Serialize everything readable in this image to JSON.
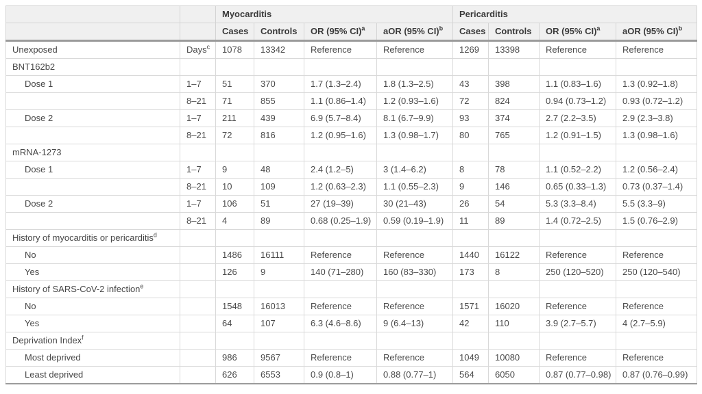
{
  "table": {
    "groups": [
      {
        "label": "Myocarditis"
      },
      {
        "label": "Pericarditis"
      }
    ],
    "columns": [
      {
        "label": "Cases",
        "sup": ""
      },
      {
        "label": "Controls",
        "sup": ""
      },
      {
        "label": "OR (95% CI)",
        "sup": "a"
      },
      {
        "label": "aOR (95% CI)",
        "sup": "b"
      },
      {
        "label": "Cases",
        "sup": ""
      },
      {
        "label": "Controls",
        "sup": ""
      },
      {
        "label": "OR (95% CI)",
        "sup": "a"
      },
      {
        "label": "aOR (95% CI)",
        "sup": "b"
      }
    ],
    "rows": [
      {
        "label": "Unexposed",
        "sup": "",
        "indent": false,
        "section": false,
        "days": "Days",
        "days_sup": "c",
        "values": [
          "1078",
          "13342",
          "Reference",
          "Reference",
          "1269",
          "13398",
          "Reference",
          "Reference"
        ]
      },
      {
        "label": "BNT162b2",
        "sup": "",
        "indent": false,
        "section": true,
        "days": "",
        "days_sup": "",
        "values": [
          "",
          "",
          "",
          "",
          "",
          "",
          "",
          ""
        ]
      },
      {
        "label": "Dose 1",
        "sup": "",
        "indent": true,
        "section": false,
        "days": "1–7",
        "days_sup": "",
        "values": [
          "51",
          "370",
          "1.7 (1.3–2.4)",
          "1.8 (1.3–2.5)",
          "43",
          "398",
          "1.1 (0.83–1.6)",
          "1.3 (0.92–1.8)"
        ]
      },
      {
        "label": "",
        "sup": "",
        "indent": true,
        "section": false,
        "days": "8–21",
        "days_sup": "",
        "values": [
          "71",
          "855",
          "1.1 (0.86–1.4)",
          "1.2 (0.93–1.6)",
          "72",
          "824",
          "0.94 (0.73–1.2)",
          "0.93 (0.72–1.2)"
        ]
      },
      {
        "label": "Dose 2",
        "sup": "",
        "indent": true,
        "section": false,
        "days": "1–7",
        "days_sup": "",
        "values": [
          "211",
          "439",
          "6.9 (5.7–8.4)",
          "8.1 (6.7–9.9)",
          "93",
          "374",
          "2.7 (2.2–3.5)",
          "2.9 (2.3–3.8)"
        ]
      },
      {
        "label": "",
        "sup": "",
        "indent": true,
        "section": false,
        "days": "8–21",
        "days_sup": "",
        "values": [
          "72",
          "816",
          "1.2 (0.95–1.6)",
          "1.3 (0.98–1.7)",
          "80",
          "765",
          "1.2 (0.91–1.5)",
          "1.3 (0.98–1.6)"
        ]
      },
      {
        "label": "mRNA-1273",
        "sup": "",
        "indent": false,
        "section": true,
        "days": "",
        "days_sup": "",
        "values": [
          "",
          "",
          "",
          "",
          "",
          "",
          "",
          ""
        ]
      },
      {
        "label": "Dose 1",
        "sup": "",
        "indent": true,
        "section": false,
        "days": "1–7",
        "days_sup": "",
        "values": [
          "9",
          "48",
          "2.4 (1.2–5)",
          "3 (1.4–6.2)",
          "8",
          "78",
          "1.1 (0.52–2.2)",
          "1.2 (0.56–2.4)"
        ]
      },
      {
        "label": "",
        "sup": "",
        "indent": true,
        "section": false,
        "days": "8–21",
        "days_sup": "",
        "values": [
          "10",
          "109",
          "1.2 (0.63–2.3)",
          "1.1 (0.55–2.3)",
          "9",
          "146",
          "0.65 (0.33–1.3)",
          "0.73 (0.37–1.4)"
        ]
      },
      {
        "label": "Dose 2",
        "sup": "",
        "indent": true,
        "section": false,
        "days": "1–7",
        "days_sup": "",
        "values": [
          "106",
          "51",
          "27 (19–39)",
          "30 (21–43)",
          "26",
          "54",
          "5.3 (3.3–8.4)",
          "5.5 (3.3–9)"
        ]
      },
      {
        "label": "",
        "sup": "",
        "indent": true,
        "section": false,
        "days": "8–21",
        "days_sup": "",
        "values": [
          "4",
          "89",
          "0.68 (0.25–1.9)",
          "0.59 (0.19–1.9)",
          "11",
          "89",
          "1.4 (0.72–2.5)",
          "1.5 (0.76–2.9)"
        ]
      },
      {
        "label": "History of myocarditis or pericarditis",
        "sup": "d",
        "indent": false,
        "section": true,
        "days": "",
        "days_sup": "",
        "values": [
          "",
          "",
          "",
          "",
          "",
          "",
          "",
          ""
        ]
      },
      {
        "label": "No",
        "sup": "",
        "indent": true,
        "section": false,
        "days": "",
        "days_sup": "",
        "values": [
          "1486",
          "16111",
          "Reference",
          "Reference",
          "1440",
          "16122",
          "Reference",
          "Reference"
        ]
      },
      {
        "label": "Yes",
        "sup": "",
        "indent": true,
        "section": false,
        "days": "",
        "days_sup": "",
        "values": [
          "126",
          "9",
          "140 (71–280)",
          "160 (83–330)",
          "173",
          "8",
          "250 (120–520)",
          "250 (120–540)"
        ]
      },
      {
        "label": "History of SARS-CoV-2 infection",
        "sup": "e",
        "indent": false,
        "section": true,
        "days": "",
        "days_sup": "",
        "values": [
          "",
          "",
          "",
          "",
          "",
          "",
          "",
          ""
        ]
      },
      {
        "label": "No",
        "sup": "",
        "indent": true,
        "section": false,
        "days": "",
        "days_sup": "",
        "values": [
          "1548",
          "16013",
          "Reference",
          "Reference",
          "1571",
          "16020",
          "Reference",
          "Reference"
        ]
      },
      {
        "label": "Yes",
        "sup": "",
        "indent": true,
        "section": false,
        "days": "",
        "days_sup": "",
        "values": [
          "64",
          "107",
          "6.3 (4.6–8.6)",
          "9 (6.4–13)",
          "42",
          "110",
          "3.9 (2.7–5.7)",
          "4 (2.7–5.9)"
        ]
      },
      {
        "label": "Deprivation Index",
        "sup": "f",
        "indent": false,
        "section": true,
        "days": "",
        "days_sup": "",
        "values": [
          "",
          "",
          "",
          "",
          "",
          "",
          "",
          ""
        ]
      },
      {
        "label": "Most deprived",
        "sup": "",
        "indent": true,
        "section": false,
        "days": "",
        "days_sup": "",
        "values": [
          "986",
          "9567",
          "Reference",
          "Reference",
          "1049",
          "10080",
          "Reference",
          "Reference"
        ]
      },
      {
        "label": "Least deprived",
        "sup": "",
        "indent": true,
        "section": false,
        "days": "",
        "days_sup": "",
        "values": [
          "626",
          "6553",
          "0.9 (0.8–1)",
          "0.88 (0.77–1)",
          "564",
          "6050",
          "0.87 (0.77–0.98)",
          "0.87 (0.76–0.99)"
        ]
      }
    ]
  }
}
